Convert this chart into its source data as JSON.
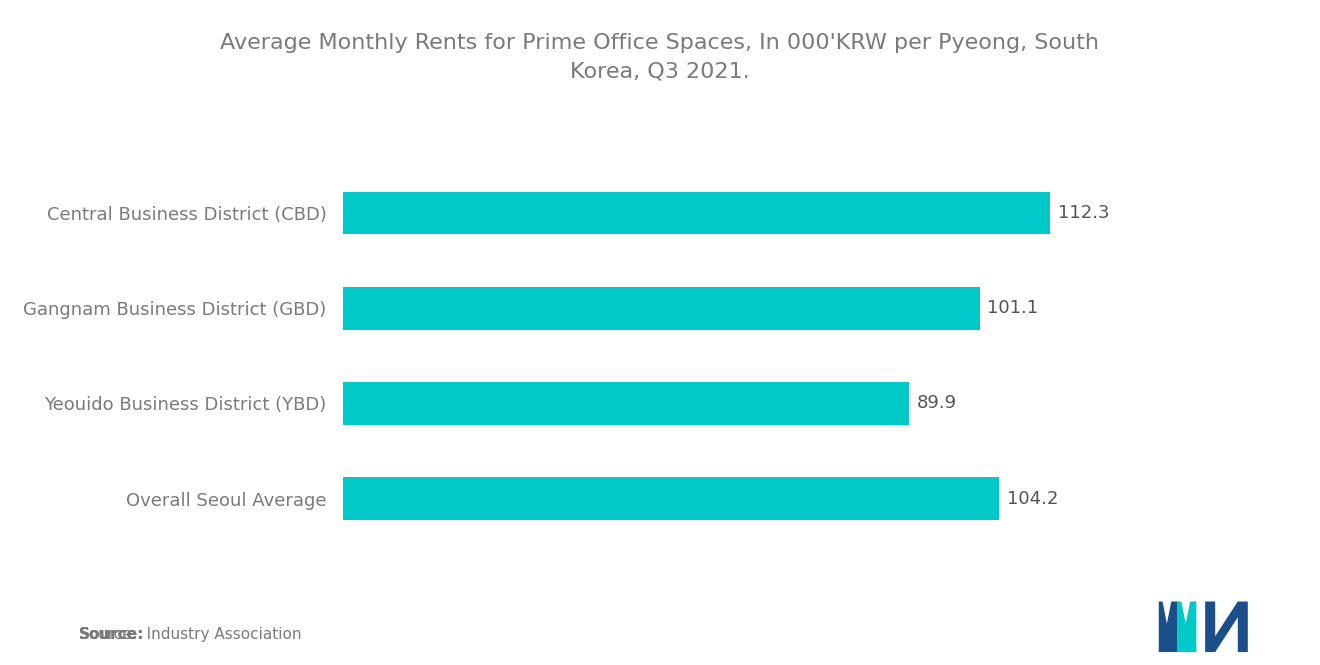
{
  "title": "Average Monthly Rents for Prime Office Spaces, In 000'KRW per Pyeong, South\nKorea, Q3 2021.",
  "categories": [
    "Overall Seoul Average",
    "Yeouido Business District (YBD)",
    "Gangnam Business District (GBD)",
    "Central Business District (CBD)"
  ],
  "values": [
    104.2,
    89.9,
    101.1,
    112.3
  ],
  "bar_color": "#00C9C8",
  "background_color": "#ffffff",
  "text_color": "#7a7a7a",
  "value_color": "#555555",
  "source_bold": "Source:",
  "source_rest": "  Industry Association",
  "title_fontsize": 16,
  "label_fontsize": 13,
  "value_fontsize": 13,
  "source_fontsize": 11,
  "xlim": [
    0,
    130
  ],
  "bar_height": 0.45
}
